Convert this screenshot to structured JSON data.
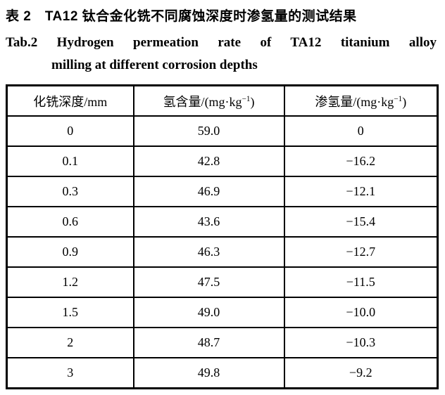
{
  "caption": {
    "zh": "表 2　TA12 钛合金化铣不同腐蚀深度时渗氢量的测试结果",
    "en_line1": "Tab.2 Hydrogen permeation rate of TA12 titanium alloy",
    "en_line2": "milling at different corrosion depths"
  },
  "table": {
    "columns": [
      {
        "text": "化铣深度/mm",
        "sup": "",
        "end": ""
      },
      {
        "text": "氢含量/(mg·kg",
        "sup": "−1",
        "end": ")"
      },
      {
        "text": "渗氢量/(mg·kg",
        "sup": "−1",
        "end": ")"
      }
    ],
    "rows": [
      [
        "0",
        "59.0",
        "0"
      ],
      [
        "0.1",
        "42.8",
        "−16.2"
      ],
      [
        "0.3",
        "46.9",
        "−12.1"
      ],
      [
        "0.6",
        "43.6",
        "−15.4"
      ],
      [
        "0.9",
        "46.3",
        "−12.7"
      ],
      [
        "1.2",
        "47.5",
        "−11.5"
      ],
      [
        "1.5",
        "49.0",
        "−10.0"
      ],
      [
        "2",
        "48.7",
        "−10.3"
      ],
      [
        "3",
        "49.8",
        "−9.2"
      ]
    ]
  },
  "colors": {
    "text": "#000000",
    "background": "#ffffff",
    "border": "#000000"
  }
}
